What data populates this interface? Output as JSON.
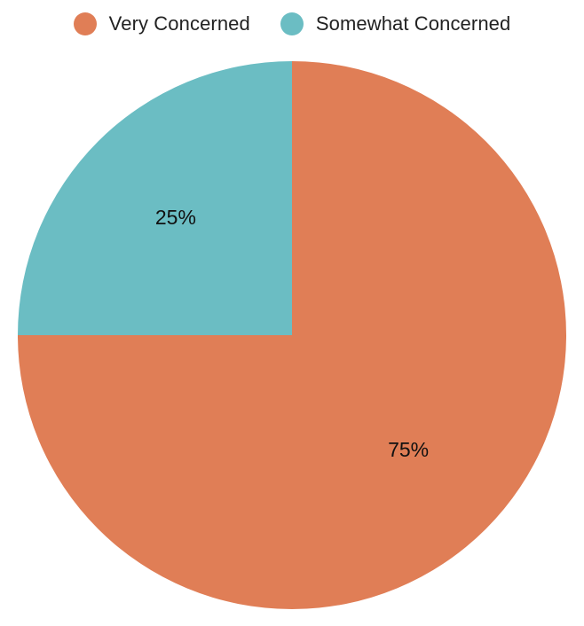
{
  "chart_data": {
    "type": "pie",
    "title": "",
    "legend_position": "top",
    "slices": [
      {
        "name": "Very Concerned",
        "value": 75,
        "label": "75%",
        "color": "#E07E56"
      },
      {
        "name": "Somewhat Concerned",
        "value": 25,
        "label": "25%",
        "color": "#6BBDC3"
      }
    ]
  }
}
